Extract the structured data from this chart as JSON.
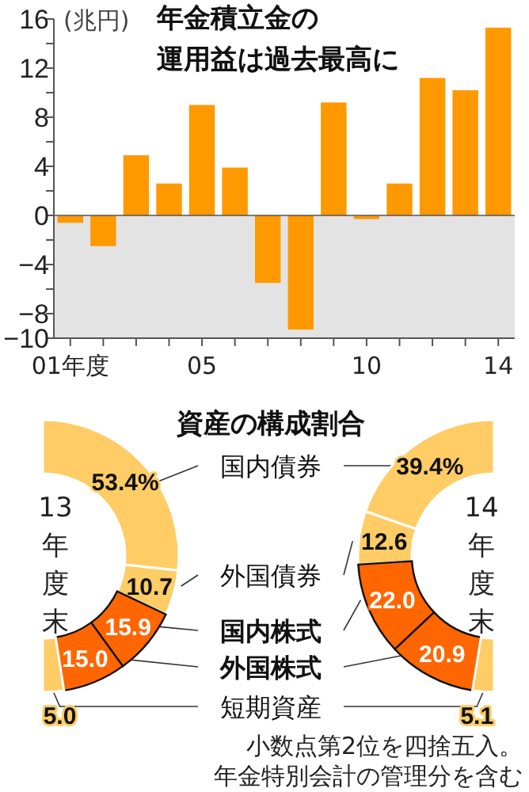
{
  "chart_data": [
    {
      "type": "bar",
      "title": "年金積立金の運用益は過去最高に",
      "ylabel": "(兆円)",
      "categories": [
        "01年度",
        null,
        null,
        null,
        "05",
        null,
        null,
        null,
        null,
        "10",
        null,
        null,
        null,
        "14"
      ],
      "values": [
        -0.6,
        -2.5,
        4.9,
        2.6,
        9.0,
        3.9,
        -5.5,
        -9.3,
        9.2,
        -0.3,
        2.6,
        11.2,
        10.2,
        15.3
      ],
      "color": "#ff9900",
      "ylim": [
        -10,
        16
      ],
      "yticks": [
        {
          "value": -10,
          "label": "−10"
        },
        {
          "value": -8,
          "label": "−8"
        },
        {
          "value": -6,
          "label": null
        },
        {
          "value": -4,
          "label": "−4"
        },
        {
          "value": -2,
          "label": null
        },
        0,
        {
          "value": 2,
          "label": null
        },
        4,
        {
          "value": 6,
          "label": null
        },
        8,
        {
          "value": 10,
          "label": null
        },
        12,
        {
          "value": 14,
          "label": null
        },
        16
      ],
      "bands": [
        {
          "axis": "y",
          "from": -10,
          "to": 0,
          "color": "#e3e3e3"
        }
      ]
    },
    {
      "type": "donut",
      "title": "資産の構成割合",
      "categories": [
        "国内債券",
        "外国債券",
        "国内株式",
        "外国株式",
        "短期資産"
      ],
      "colors": [
        "#ffcc66",
        "#ffcc66",
        "#ff6600",
        "#ff6600",
        "#ffcc66"
      ],
      "series": [
        {
          "name": "13年度末",
          "values": [
            53.4,
            10.7,
            15.9,
            15.0,
            5.0
          ],
          "value_labels": [
            "53.4%",
            "10.7",
            "15.9",
            "15.0",
            "5.0"
          ]
        },
        {
          "name": "14年度末",
          "values": [
            39.4,
            12.6,
            22.0,
            20.9,
            5.1
          ],
          "value_labels": [
            "39.4%",
            "12.6",
            "22.0",
            "20.9",
            "5.1"
          ]
        }
      ],
      "annotations": [
        "小数点第2位を四捨五入。",
        "年金特別会計の管理分を含む"
      ]
    }
  ]
}
